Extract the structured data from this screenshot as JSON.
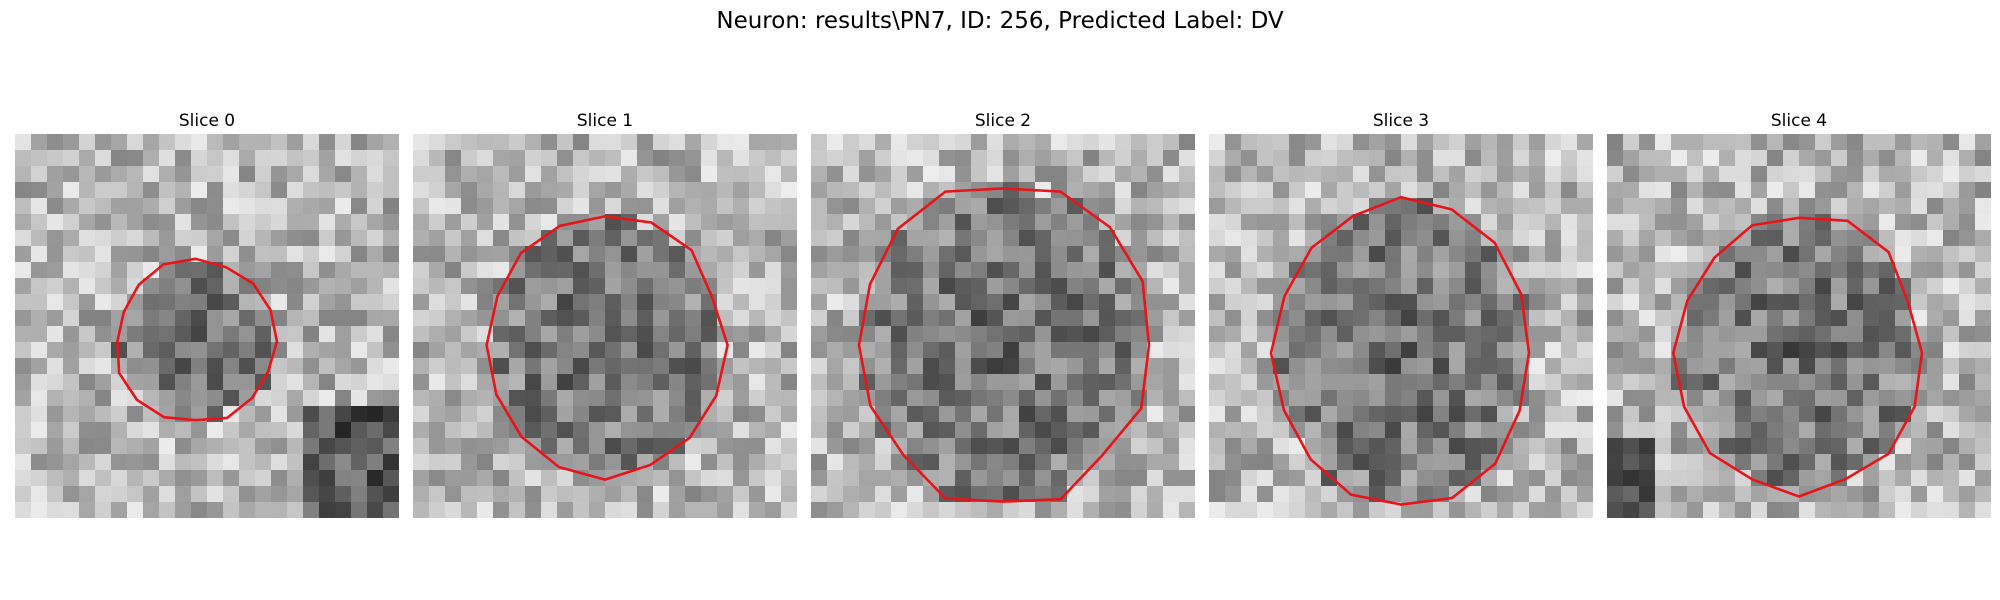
{
  "figure": {
    "title": "Neuron: results\\PN7, ID: 256, Predicted Label: DV"
  },
  "colors": {
    "contour": "#e8141a",
    "image_colormap": "gray"
  },
  "panels": [
    {
      "title": "Slice 0",
      "seed": 11,
      "contour_center": [
        0.47,
        0.54
      ],
      "contour_radius": [
        0.21,
        0.21
      ],
      "dark_level": 0.35,
      "dark_corner": "bottom-right"
    },
    {
      "title": "Slice 1",
      "seed": 23,
      "contour_center": [
        0.5,
        0.55
      ],
      "contour_radius": [
        0.31,
        0.34
      ],
      "dark_level": 0.4,
      "dark_corner": "none"
    },
    {
      "title": "Slice 2",
      "seed": 37,
      "contour_center": [
        0.5,
        0.55
      ],
      "contour_radius": [
        0.38,
        0.42
      ],
      "dark_level": 0.4,
      "dark_corner": "none"
    },
    {
      "title": "Slice 3",
      "seed": 41,
      "contour_center": [
        0.5,
        0.57
      ],
      "contour_radius": [
        0.34,
        0.4
      ],
      "dark_level": 0.4,
      "dark_corner": "none"
    },
    {
      "title": "Slice 4",
      "seed": 53,
      "contour_center": [
        0.5,
        0.57
      ],
      "contour_radius": [
        0.32,
        0.36
      ],
      "dark_level": 0.25,
      "dark_corner": "bottom-left"
    }
  ]
}
